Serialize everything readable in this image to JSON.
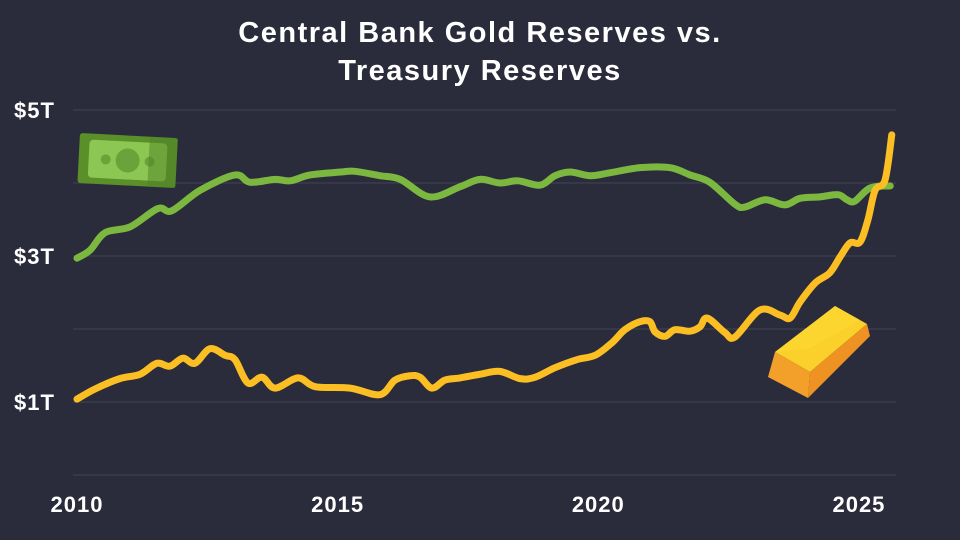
{
  "chart_data": {
    "type": "line",
    "title_line1": "Central Bank Gold Reserves vs.",
    "title_line2": "Treasury Reserves",
    "xlabel": "",
    "ylabel": "",
    "xlim": [
      2010,
      2025.7
    ],
    "ylim": [
      0,
      5
    ],
    "grid": true,
    "x_ticks": [
      {
        "value": 2010,
        "label": "2010"
      },
      {
        "value": 2015,
        "label": "2015"
      },
      {
        "value": 2020,
        "label": "2020"
      },
      {
        "value": 2025,
        "label": "2025"
      }
    ],
    "y_ticks": [
      {
        "value": 5,
        "label": "$5T"
      },
      {
        "value": 3,
        "label": "$3T"
      },
      {
        "value": 1,
        "label": "$1T"
      }
    ],
    "y_gridlines": [
      0,
      1,
      2,
      3,
      4,
      5
    ],
    "series": [
      {
        "name": "Treasury Reserves",
        "icon": "money-bill-icon",
        "color": "#7cb83f",
        "x": [
          2010.0,
          2010.25,
          2010.54,
          2011.02,
          2011.55,
          2011.82,
          2012.36,
          2013.03,
          2013.32,
          2013.8,
          2014.09,
          2014.47,
          2015.05,
          2015.33,
          2015.81,
          2016.2,
          2016.77,
          2017.35,
          2017.73,
          2018.11,
          2018.46,
          2018.88,
          2019.17,
          2019.46,
          2019.84,
          2020.22,
          2020.8,
          2021.38,
          2021.76,
          2022.14,
          2022.62,
          2022.81,
          2023.2,
          2023.58,
          2023.87,
          2024.25,
          2024.6,
          2024.77,
          2024.92,
          2025.21,
          2025.6
        ],
        "y": [
          2.97,
          3.08,
          3.32,
          3.4,
          3.65,
          3.62,
          3.9,
          4.11,
          4.01,
          4.05,
          4.03,
          4.11,
          4.15,
          4.16,
          4.1,
          4.05,
          3.81,
          3.95,
          4.05,
          4.0,
          4.03,
          3.97,
          4.1,
          4.15,
          4.1,
          4.14,
          4.21,
          4.21,
          4.11,
          4.01,
          3.71,
          3.67,
          3.77,
          3.7,
          3.79,
          3.81,
          3.84,
          3.77,
          3.75,
          3.93,
          3.96
        ]
      },
      {
        "name": "Gold Reserves",
        "icon": "gold-bar-icon",
        "color": "#fbbf24",
        "x": [
          2010.0,
          2010.35,
          2010.82,
          2011.21,
          2011.53,
          2011.78,
          2012.03,
          2012.26,
          2012.55,
          2012.84,
          2013.03,
          2013.28,
          2013.55,
          2013.8,
          2014.24,
          2014.57,
          2015.24,
          2015.81,
          2016.1,
          2016.39,
          2016.58,
          2016.81,
          2017.06,
          2017.35,
          2017.73,
          2018.11,
          2018.5,
          2018.79,
          2019.17,
          2019.59,
          2019.94,
          2020.26,
          2020.51,
          2020.8,
          2020.99,
          2021.09,
          2021.28,
          2021.47,
          2021.76,
          2021.95,
          2022.09,
          2022.43,
          2022.62,
          2023.1,
          2023.49,
          2023.68,
          2023.87,
          2024.16,
          2024.44,
          2024.64,
          2024.83,
          2025.02,
          2025.17,
          2025.31,
          2025.5,
          2025.63
        ],
        "y": [
          1.04,
          1.18,
          1.32,
          1.38,
          1.53,
          1.49,
          1.6,
          1.53,
          1.73,
          1.64,
          1.58,
          1.26,
          1.34,
          1.19,
          1.33,
          1.21,
          1.19,
          1.1,
          1.3,
          1.36,
          1.34,
          1.19,
          1.3,
          1.33,
          1.38,
          1.42,
          1.32,
          1.34,
          1.47,
          1.58,
          1.64,
          1.81,
          1.99,
          2.1,
          2.1,
          1.96,
          1.9,
          1.99,
          1.97,
          2.03,
          2.15,
          1.95,
          1.89,
          2.26,
          2.19,
          2.15,
          2.37,
          2.63,
          2.77,
          2.99,
          3.18,
          3.19,
          3.49,
          3.9,
          4.04,
          4.66
        ]
      }
    ]
  }
}
